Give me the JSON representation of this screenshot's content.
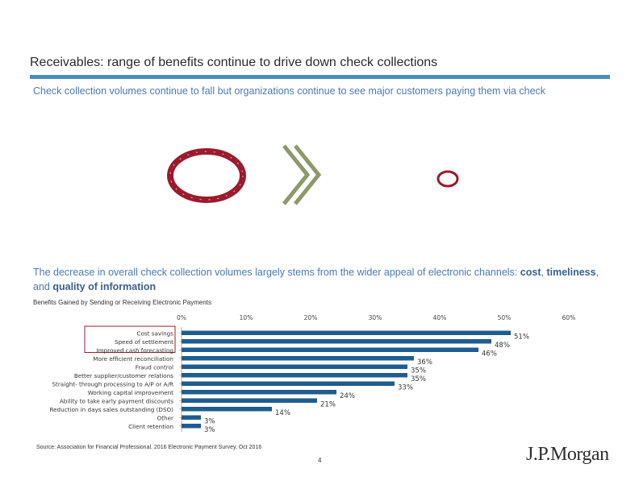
{
  "header": {
    "title": "Receivables: range of benefits continue to drive down check collections",
    "subtitle": "Check collection volumes continue to fall but organizations continue to see major customers paying them via check"
  },
  "lead": {
    "text_before": "The decrease in overall check collection volumes largely stems from the wider appeal of electronic channels: ",
    "bold1": "cost",
    "sep1": ", ",
    "bold2": "timeliness",
    "sep2": ", and ",
    "bold3": "quality of information"
  },
  "icons": {
    "large_ring": "large-ring-icon",
    "chevrons": "double-chevron-right-icon",
    "small_ring": "small-ring-icon",
    "ring_color": "#9b1b2e",
    "chevron_color": "#8c9a6a"
  },
  "chart_data": {
    "type": "bar",
    "orientation": "horizontal",
    "title": "Benefits Gained by Sending or Receiving Electronic Payments",
    "categories": [
      "Cost savings",
      "Speed of settlement",
      "Improved cash forecasting",
      "More efficient reconciliation",
      "Fraud control",
      "Better supplier/customer relations",
      "Straight- through processing to A/P or A/R",
      "Working capital improvement",
      "Ability to take early payment discounts",
      "Reduction in days sales outstanding (DSO)",
      "Other",
      "Client retention"
    ],
    "values": [
      51,
      48,
      46,
      36,
      35,
      35,
      33,
      24,
      21,
      14,
      3,
      3
    ],
    "value_labels": [
      "51%",
      "48%",
      "46%",
      "36%",
      "35%",
      "35%",
      "33%",
      "24%",
      "21%",
      "14%",
      "3%",
      "3%"
    ],
    "xlim": [
      0,
      60
    ],
    "xticks": [
      "0%",
      "10%",
      "20%",
      "30%",
      "40%",
      "50%",
      "60%"
    ],
    "highlighted_categories": [
      "Cost savings",
      "Speed of settlement",
      "Improved cash forecasting"
    ],
    "bar_color": "#1f5c8f",
    "highlight_color": "#9b1b2e"
  },
  "footer": {
    "source": "Source: Association for Financial Professional. 2016 Electronic Payment Survey, Oct 2016",
    "page_number": "4",
    "logo": "J.P.Morgan"
  }
}
